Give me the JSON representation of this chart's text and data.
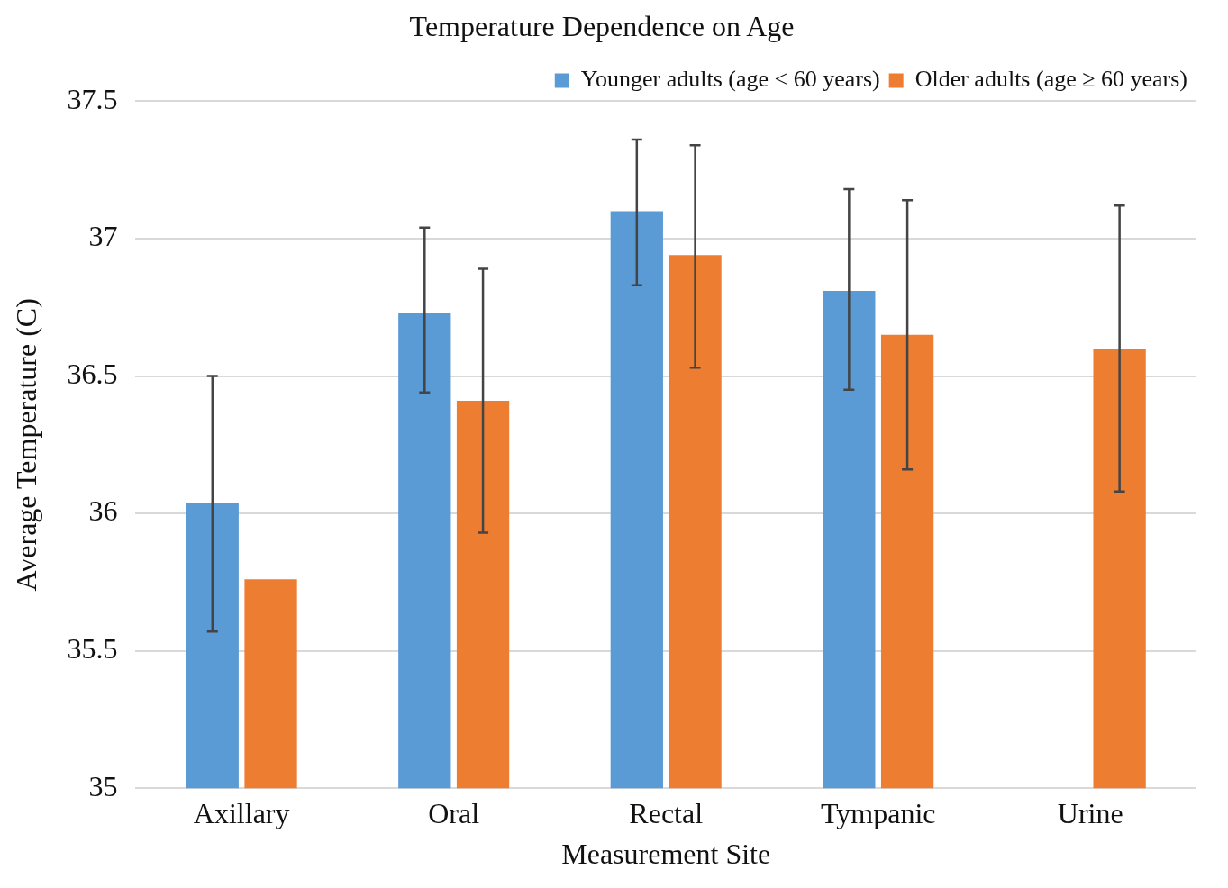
{
  "chart_data": {
    "type": "bar",
    "title": "Temperature Dependence on Age",
    "xlabel": "Measurement Site",
    "ylabel": "Average Temperature (C)",
    "categories": [
      "Axillary",
      "Oral",
      "Rectal",
      "Tympanic",
      "Urine"
    ],
    "series": [
      {
        "name": "Younger adults (age < 60 years)",
        "color": "#5b9bd5",
        "values": [
          36.04,
          36.73,
          37.1,
          36.81,
          null
        ],
        "errors": [
          [
            35.57,
            36.5
          ],
          [
            36.44,
            37.04
          ],
          [
            36.83,
            37.36
          ],
          [
            36.45,
            37.18
          ],
          null
        ]
      },
      {
        "name": "Older adults (age ≥ 60 years)",
        "color": "#ed7d31",
        "values": [
          35.76,
          36.41,
          36.94,
          36.65,
          36.6
        ],
        "errors": [
          null,
          [
            35.93,
            36.89
          ],
          [
            36.53,
            37.34
          ],
          [
            36.16,
            37.14
          ],
          [
            36.08,
            37.12
          ]
        ]
      }
    ],
    "ylim": [
      35,
      37.5
    ],
    "yticks": [
      35,
      35.5,
      36,
      36.5,
      37,
      37.5
    ],
    "grid": "y",
    "legend": "top right"
  }
}
